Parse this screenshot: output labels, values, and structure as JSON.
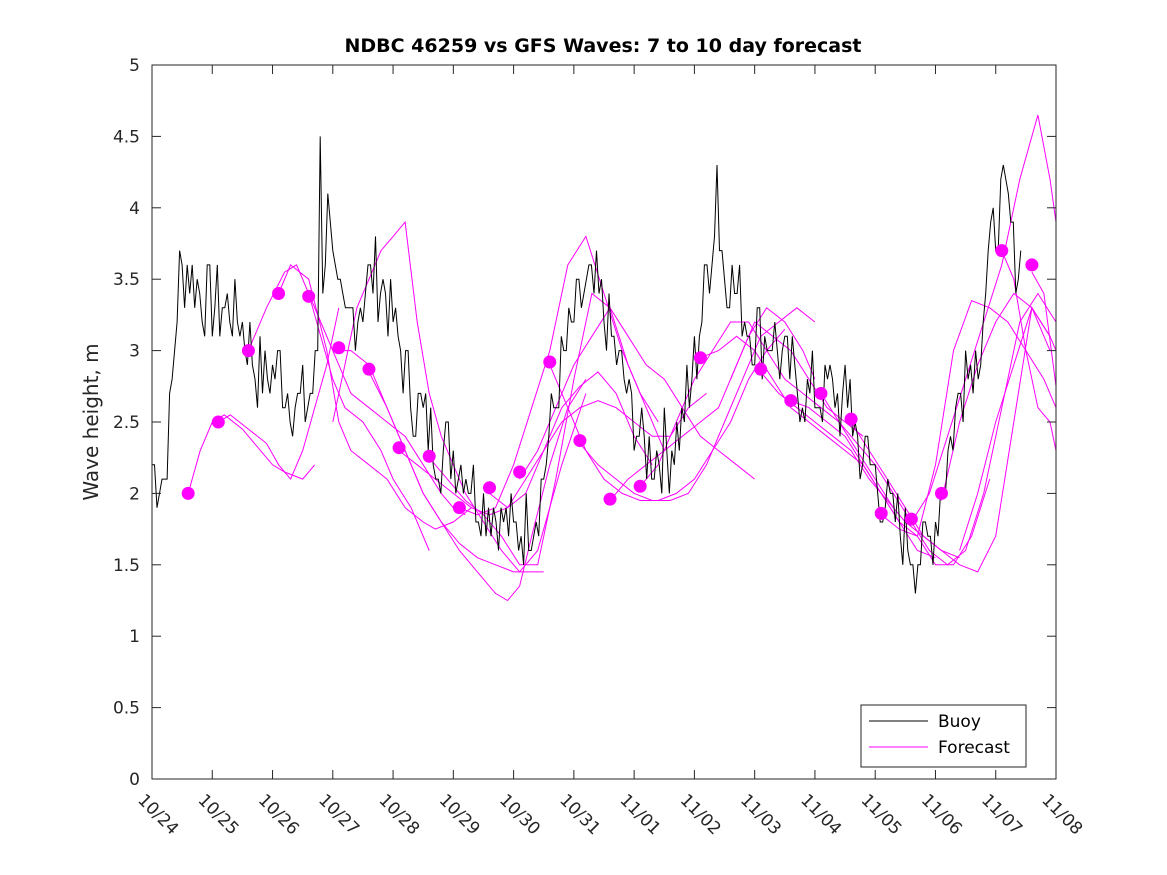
{
  "chart_data": {
    "type": "line",
    "title": "NDBC 46259 vs GFS Waves: 7 to 10 day forecast",
    "xlabel": "",
    "ylabel": "Wave height, m",
    "xlim": [
      0,
      15
    ],
    "ylim": [
      0,
      5
    ],
    "x_unit": "days since 10/24 00:00",
    "xticks": [
      0,
      1,
      2,
      3,
      4,
      5,
      6,
      7,
      8,
      9,
      10,
      11,
      12,
      13,
      14,
      15
    ],
    "xtick_labels": [
      "10/24",
      "10/25",
      "10/26",
      "10/27",
      "10/28",
      "10/29",
      "10/30",
      "10/31",
      "11/01",
      "11/02",
      "11/03",
      "11/04",
      "11/05",
      "11/06",
      "11/07",
      "11/08"
    ],
    "yticks": [
      0,
      0.5,
      1,
      1.5,
      2,
      2.5,
      3,
      3.5,
      4,
      4.5,
      5
    ],
    "ytick_labels": [
      "0",
      "0.5",
      "1",
      "1.5",
      "2",
      "2.5",
      "3",
      "3.5",
      "4",
      "4.5",
      "5"
    ],
    "legend": {
      "location": "bottom-right",
      "entries": [
        "Buoy",
        "Forecast"
      ]
    },
    "colors": {
      "buoy": "#000000",
      "forecast": "#ff00ff",
      "axis": "#262626"
    },
    "buoy_anchors": [
      [
        0.0,
        2.2
      ],
      [
        0.2,
        2.1
      ],
      [
        0.3,
        2.5
      ],
      [
        0.45,
        3.5
      ],
      [
        0.6,
        3.6
      ],
      [
        0.8,
        3.4
      ],
      [
        1.0,
        3.3
      ],
      [
        1.3,
        3.3
      ],
      [
        1.5,
        3.2
      ],
      [
        1.7,
        2.9
      ],
      [
        1.9,
        2.8
      ],
      [
        2.1,
        2.9
      ],
      [
        2.3,
        2.7
      ],
      [
        2.5,
        2.6
      ],
      [
        2.7,
        2.8
      ],
      [
        2.85,
        3.6
      ],
      [
        2.95,
        4.2
      ],
      [
        3.05,
        3.4
      ],
      [
        3.2,
        3.1
      ],
      [
        3.4,
        3.3
      ],
      [
        3.6,
        3.5
      ],
      [
        3.8,
        3.5
      ],
      [
        4.0,
        3.2
      ],
      [
        4.2,
        2.9
      ],
      [
        4.4,
        2.6
      ],
      [
        4.6,
        2.4
      ],
      [
        4.8,
        2.3
      ],
      [
        5.0,
        2.3
      ],
      [
        5.2,
        2.2
      ],
      [
        5.4,
        2.0
      ],
      [
        5.6,
        1.9
      ],
      [
        5.8,
        1.8
      ],
      [
        6.0,
        1.7
      ],
      [
        6.2,
        1.75
      ],
      [
        6.4,
        1.9
      ],
      [
        6.6,
        2.4
      ],
      [
        6.8,
        2.9
      ],
      [
        7.0,
        3.2
      ],
      [
        7.2,
        3.4
      ],
      [
        7.4,
        3.4
      ],
      [
        7.6,
        3.1
      ],
      [
        7.8,
        2.8
      ],
      [
        8.0,
        2.5
      ],
      [
        8.2,
        2.3
      ],
      [
        8.4,
        2.3
      ],
      [
        8.6,
        2.3
      ],
      [
        8.8,
        2.5
      ],
      [
        9.0,
        2.9
      ],
      [
        9.2,
        3.5
      ],
      [
        9.35,
        3.9
      ],
      [
        9.5,
        3.6
      ],
      [
        9.7,
        3.4
      ],
      [
        9.9,
        3.2
      ],
      [
        10.1,
        3.1
      ],
      [
        10.3,
        3.1
      ],
      [
        10.5,
        2.9
      ],
      [
        10.7,
        2.75
      ],
      [
        10.9,
        2.7
      ],
      [
        11.1,
        2.7
      ],
      [
        11.3,
        2.7
      ],
      [
        11.5,
        2.6
      ],
      [
        11.7,
        2.4
      ],
      [
        11.9,
        2.2
      ],
      [
        12.1,
        2.0
      ],
      [
        12.3,
        1.8
      ],
      [
        12.5,
        1.7
      ],
      [
        12.7,
        1.55
      ],
      [
        12.9,
        1.6
      ],
      [
        13.1,
        2.0
      ],
      [
        13.3,
        2.5
      ],
      [
        13.5,
        2.8
      ],
      [
        13.7,
        3.0
      ],
      [
        13.85,
        3.5
      ],
      [
        14.0,
        3.9
      ],
      [
        14.15,
        4.1
      ],
      [
        14.3,
        3.7
      ],
      [
        14.45,
        3.6
      ]
    ],
    "buoy_spikes": [
      [
        2.78,
        4.5
      ],
      [
        9.38,
        4.3
      ],
      [
        13.52,
        3.0
      ],
      [
        11.6,
        2.8
      ],
      [
        8.92,
        2.6
      ]
    ],
    "forecast_series": [
      {
        "x": [
          0.6,
          0.8,
          1.0,
          1.2,
          1.5,
          1.8,
          2.0,
          2.2,
          2.5,
          2.7
        ],
        "y": [
          2.0,
          2.3,
          2.5,
          2.55,
          2.45,
          2.3,
          2.2,
          2.15,
          2.1,
          2.2
        ]
      },
      {
        "x": [
          1.1,
          1.3,
          1.6,
          1.9,
          2.1,
          2.3,
          2.5,
          2.7,
          2.9,
          3.1
        ],
        "y": [
          2.5,
          2.55,
          2.45,
          2.35,
          2.2,
          2.1,
          2.3,
          2.6,
          2.9,
          3.3
        ]
      },
      {
        "x": [
          1.6,
          1.9,
          2.2,
          2.4,
          2.6,
          2.8,
          3.0,
          3.2,
          3.5,
          3.8,
          4.0,
          4.3,
          4.6
        ],
        "y": [
          3.0,
          3.3,
          3.55,
          3.6,
          3.4,
          3.1,
          2.8,
          2.6,
          2.5,
          2.3,
          2.1,
          1.9,
          1.6
        ]
      },
      {
        "x": [
          2.1,
          2.3,
          2.6,
          2.9,
          3.1,
          3.3,
          3.6,
          3.9,
          4.2,
          4.5,
          4.7,
          5.0,
          5.3
        ],
        "y": [
          3.4,
          3.6,
          3.5,
          3.0,
          2.5,
          2.3,
          2.2,
          2.1,
          1.9,
          1.8,
          1.75,
          1.8,
          1.9
        ]
      },
      {
        "x": [
          2.6,
          2.8,
          3.1,
          3.3,
          3.6,
          3.9,
          4.2,
          4.5,
          4.8,
          5.0,
          5.2
        ],
        "y": [
          3.4,
          3.2,
          2.9,
          2.7,
          2.6,
          2.5,
          2.4,
          2.2,
          2.0,
          1.9,
          1.85
        ]
      },
      {
        "x": [
          3.1,
          3.3,
          3.6,
          3.9,
          4.2,
          4.5,
          4.8,
          5.1,
          5.4,
          5.7,
          6.0,
          6.3,
          6.5
        ],
        "y": [
          3.0,
          3.0,
          2.9,
          2.6,
          2.3,
          2.0,
          1.8,
          1.65,
          1.55,
          1.5,
          1.45,
          1.45,
          1.45
        ]
      },
      {
        "x": [
          3.6,
          3.9,
          4.2,
          4.5,
          4.8,
          5.1,
          5.4,
          5.7,
          5.9,
          6.1,
          6.3,
          6.6,
          6.9,
          7.2
        ],
        "y": [
          2.85,
          2.6,
          2.3,
          2.0,
          1.8,
          1.6,
          1.45,
          1.3,
          1.25,
          1.35,
          1.7,
          2.2,
          2.6,
          2.8
        ]
      },
      {
        "x": [
          3.0,
          3.2,
          3.4,
          3.6,
          3.8,
          4.0,
          4.2,
          4.4,
          4.6,
          4.8,
          5.0,
          5.2,
          5.5,
          5.8,
          6.1,
          6.4,
          6.8,
          7.2
        ],
        "y": [
          2.5,
          2.9,
          3.3,
          3.5,
          3.7,
          3.8,
          3.9,
          3.2,
          2.7,
          2.4,
          2.2,
          2.0,
          1.8,
          1.6,
          1.45,
          1.6,
          2.2,
          2.7
        ]
      },
      {
        "x": [
          4.1,
          4.4,
          4.7,
          5.0,
          5.3,
          5.6,
          5.9,
          6.2,
          6.5,
          6.8,
          7.1,
          7.4,
          7.7,
          8.0,
          8.3
        ],
        "y": [
          2.3,
          2.2,
          2.1,
          2.0,
          1.9,
          1.85,
          1.9,
          2.0,
          2.3,
          2.6,
          2.75,
          2.85,
          2.7,
          2.4,
          2.2
        ]
      },
      {
        "x": [
          4.6,
          4.9,
          5.2,
          5.5,
          5.8,
          6.1,
          6.4,
          6.7,
          7.0,
          7.3,
          7.6,
          7.9,
          8.2,
          8.5
        ],
        "y": [
          2.25,
          2.1,
          1.95,
          1.85,
          1.7,
          1.5,
          1.5,
          2.1,
          2.8,
          3.4,
          3.3,
          2.9,
          2.6,
          2.3
        ]
      },
      {
        "x": [
          5.1,
          5.4,
          5.7,
          6.0,
          6.3,
          6.6,
          6.9,
          7.2,
          7.5,
          7.8,
          8.1,
          8.4
        ],
        "y": [
          1.9,
          1.85,
          1.9,
          2.2,
          2.6,
          3.0,
          3.6,
          3.8,
          3.4,
          3.0,
          2.7,
          2.5
        ]
      },
      {
        "x": [
          5.6,
          5.9,
          6.2,
          6.5,
          6.8,
          7.1,
          7.4,
          7.7,
          8.0,
          8.3,
          8.6,
          8.9,
          9.2
        ],
        "y": [
          2.0,
          1.9,
          2.1,
          2.3,
          2.5,
          2.6,
          2.65,
          2.6,
          2.5,
          2.4,
          2.4,
          2.6,
          2.7
        ]
      },
      {
        "x": [
          6.1,
          6.4,
          6.7,
          7.0,
          7.3,
          7.6,
          7.9,
          8.2,
          8.5,
          8.8,
          9.1,
          9.4,
          9.7,
          10.0
        ],
        "y": [
          2.1,
          2.3,
          2.6,
          2.9,
          3.1,
          3.3,
          3.1,
          2.9,
          2.8,
          2.6,
          2.4,
          2.3,
          2.2,
          2.1
        ]
      },
      {
        "x": [
          6.6,
          6.9,
          7.2,
          7.5,
          7.8,
          8.1,
          8.4,
          8.7,
          9.0,
          9.3,
          9.6,
          9.9,
          10.2,
          10.5
        ],
        "y": [
          2.9,
          2.6,
          2.3,
          2.1,
          2.0,
          1.95,
          1.95,
          2.0,
          2.1,
          2.3,
          2.5,
          2.8,
          3.0,
          3.15
        ]
      },
      {
        "x": [
          7.1,
          7.4,
          7.7,
          8.0,
          8.3,
          8.6,
          8.9,
          9.2,
          9.5,
          9.8,
          10.1,
          10.4,
          10.7,
          11.0
        ],
        "y": [
          2.35,
          2.2,
          2.1,
          2.0,
          1.95,
          1.95,
          2.0,
          2.2,
          2.5,
          2.8,
          3.1,
          3.2,
          3.3,
          3.2
        ]
      },
      {
        "x": [
          7.6,
          7.9,
          8.2,
          8.5,
          8.8,
          9.1,
          9.4,
          9.7,
          10.0,
          10.3,
          10.6,
          10.9,
          11.2,
          11.5,
          11.8
        ],
        "y": [
          1.95,
          2.1,
          2.2,
          2.3,
          2.4,
          2.5,
          2.6,
          2.9,
          3.2,
          3.1,
          3.0,
          2.8,
          2.6,
          2.5,
          2.4
        ]
      },
      {
        "x": [
          8.1,
          8.4,
          8.7,
          9.0,
          9.3,
          9.6,
          9.9,
          10.2,
          10.5,
          10.8,
          11.1,
          11.4,
          11.7,
          12.0,
          12.3
        ],
        "y": [
          2.05,
          2.2,
          2.5,
          2.8,
          3.0,
          3.2,
          3.2,
          3.0,
          2.8,
          2.7,
          2.6,
          2.5,
          2.3,
          2.1,
          1.9
        ]
      },
      {
        "x": [
          9.1,
          9.4,
          9.7,
          10.0,
          10.3,
          10.6,
          10.9,
          11.2,
          11.5,
          11.8,
          12.1,
          12.4,
          12.7,
          13.0
        ],
        "y": [
          2.95,
          3.0,
          3.1,
          3.0,
          2.8,
          2.6,
          2.5,
          2.4,
          2.3,
          2.2,
          2.0,
          1.8,
          1.6,
          1.55
        ]
      },
      {
        "x": [
          10.1,
          10.4,
          10.7,
          11.0,
          11.3,
          11.6,
          11.9,
          12.2,
          12.5,
          12.8,
          13.1,
          13.4
        ],
        "y": [
          2.85,
          2.7,
          2.6,
          2.5,
          2.4,
          2.3,
          2.1,
          1.95,
          1.8,
          1.7,
          1.6,
          1.55
        ]
      },
      {
        "x": [
          10.6,
          10.9,
          11.2,
          11.5,
          11.8,
          12.1,
          12.4,
          12.7,
          13.0,
          13.3,
          13.6,
          13.9
        ],
        "y": [
          2.65,
          2.6,
          2.5,
          2.4,
          2.2,
          2.0,
          1.8,
          1.7,
          1.5,
          1.5,
          1.7,
          2.1
        ]
      },
      {
        "x": [
          11.1,
          11.4,
          11.7,
          12.0,
          12.3,
          12.6,
          12.9,
          13.2,
          13.5,
          13.8,
          14.1,
          14.4,
          14.7,
          15.0
        ],
        "y": [
          2.7,
          2.5,
          2.35,
          2.2,
          2.0,
          1.8,
          1.6,
          1.5,
          1.6,
          2.0,
          2.6,
          3.2,
          3.4,
          3.2
        ]
      },
      {
        "x": [
          11.6,
          11.9,
          12.2,
          12.5,
          12.8,
          13.1,
          13.4,
          13.7,
          14.0,
          14.3,
          14.6,
          14.9
        ],
        "y": [
          2.5,
          2.3,
          2.1,
          1.9,
          1.7,
          1.6,
          1.5,
          1.45,
          1.7,
          2.5,
          3.3,
          3.0
        ]
      },
      {
        "x": [
          12.1,
          12.4,
          12.7,
          13.0,
          13.3,
          13.6,
          13.9,
          14.2,
          14.5,
          14.8,
          15.0
        ],
        "y": [
          1.85,
          1.75,
          1.7,
          2.2,
          3.0,
          3.35,
          3.3,
          3.2,
          3.0,
          2.8,
          2.6
        ]
      },
      {
        "x": [
          12.6,
          12.9,
          13.2,
          13.5,
          13.8,
          14.1,
          14.4,
          14.7,
          14.9,
          15.0
        ],
        "y": [
          1.8,
          2.0,
          2.4,
          2.8,
          3.2,
          3.6,
          4.2,
          4.65,
          4.2,
          3.9
        ]
      },
      {
        "x": [
          13.1,
          13.4,
          13.7,
          14.0,
          14.3,
          14.6,
          14.9,
          15.0
        ],
        "y": [
          1.95,
          2.5,
          2.9,
          3.2,
          3.4,
          3.3,
          3.1,
          3.0
        ]
      },
      {
        "x": [
          13.4,
          13.7,
          14.0,
          14.3,
          14.6,
          14.9
        ],
        "y": [
          1.6,
          2.0,
          2.5,
          2.9,
          3.3,
          3.1
        ]
      },
      {
        "x": [
          14.1,
          14.3,
          14.5,
          14.7,
          14.9,
          15.0
        ],
        "y": [
          3.7,
          3.5,
          3.0,
          2.6,
          2.5,
          2.3
        ]
      },
      {
        "x": [
          14.6,
          14.8,
          15.0
        ],
        "y": [
          3.55,
          3.4,
          2.75
        ]
      },
      {
        "x": [
          9.6,
          9.9,
          10.2,
          10.5,
          10.8,
          11.0
        ],
        "y": [
          2.8,
          3.1,
          3.3,
          3.2,
          3.0,
          2.8
        ]
      }
    ],
    "forecast_markers": {
      "x": [
        0.6,
        1.1,
        1.6,
        2.1,
        2.6,
        3.1,
        3.6,
        4.1,
        4.6,
        5.1,
        5.6,
        6.1,
        6.6,
        7.1,
        7.6,
        8.1,
        9.1,
        10.1,
        10.6,
        11.1,
        11.6,
        12.1,
        12.6,
        13.1,
        14.1,
        14.6
      ],
      "y": [
        2.0,
        2.5,
        3.0,
        3.4,
        3.38,
        3.02,
        2.87,
        2.32,
        2.26,
        1.9,
        2.04,
        2.15,
        2.92,
        2.37,
        1.96,
        2.05,
        2.95,
        2.87,
        2.65,
        2.7,
        2.52,
        1.86,
        1.82,
        2.0,
        3.7,
        3.6
      ]
    }
  }
}
